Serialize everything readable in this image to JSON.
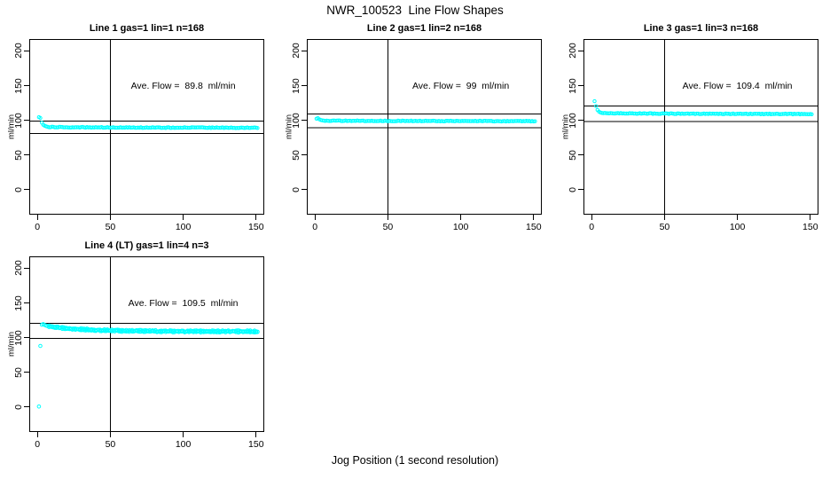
{
  "page": {
    "main_title": "NWR_100523  Line Flow Shapes",
    "x_axis_label": "Jog Position (1 second resolution)",
    "background_color": "#ffffff",
    "line_color": "#000000",
    "point_color": "#00ffff"
  },
  "chart_data": [
    {
      "type": "scatter",
      "title": "Line 1 gas=1 lin=1 n=168",
      "ylabel": "ml/min",
      "annotation": "Ave. Flow =  89.8  ml/min",
      "annotation_xy": [
        100,
        150
      ],
      "ave_flow_ml_min": 89.8,
      "n": 168,
      "xlim": [
        -5,
        155
      ],
      "ylim": [
        -35,
        216
      ],
      "x_ticks": [
        0,
        50,
        100,
        150
      ],
      "y_ticks": [
        0,
        50,
        100,
        150,
        200
      ],
      "vline_x": 50,
      "hlines": [
        98.8,
        80.8
      ],
      "marker": {
        "shape": "circle-open",
        "color": "#00ffff",
        "radius": 1.7
      },
      "outlier_points": [],
      "transient_points": [
        [
          1,
          104.5
        ],
        [
          2,
          103.3
        ],
        [
          3,
          96.5
        ],
        [
          4,
          93.5
        ],
        [
          5,
          92.0
        ],
        [
          6,
          91.1
        ],
        [
          7,
          90.5
        ]
      ],
      "band": {
        "x_from": 8,
        "x_to": 151,
        "level_start": 90.3,
        "level_end": 89.2,
        "tau": 45,
        "noise": 0.55,
        "layers": 1
      }
    },
    {
      "type": "scatter",
      "title": "Line 2 gas=1 lin=2 n=168",
      "ylabel": "ml/min",
      "annotation": "Ave. Flow =  99  ml/min",
      "annotation_xy": [
        100,
        150
      ],
      "ave_flow_ml_min": 99,
      "n": 168,
      "xlim": [
        -5,
        155
      ],
      "ylim": [
        -35,
        216
      ],
      "x_ticks": [
        0,
        50,
        100,
        150
      ],
      "y_ticks": [
        0,
        50,
        100,
        150,
        200
      ],
      "vline_x": 50,
      "hlines": [
        108.9,
        89.1
      ],
      "marker": {
        "shape": "circle-open",
        "color": "#00ffff",
        "radius": 1.7
      },
      "outlier_points": [],
      "transient_points": [
        [
          1,
          102.3
        ],
        [
          2,
          103.0
        ],
        [
          3,
          101.3
        ],
        [
          4,
          100.3
        ],
        [
          5,
          99.8
        ],
        [
          6,
          99.5
        ]
      ],
      "band": {
        "x_from": 7,
        "x_to": 151,
        "level_start": 99.4,
        "level_end": 98.7,
        "tau": 60,
        "noise": 0.5,
        "layers": 1
      }
    },
    {
      "type": "scatter",
      "title": "Line 3 gas=1 lin=3 n=168",
      "ylabel": "ml/min",
      "annotation": "Ave. Flow =  109.4  ml/min",
      "annotation_xy": [
        100,
        150
      ],
      "ave_flow_ml_min": 109.4,
      "n": 168,
      "xlim": [
        -5,
        155
      ],
      "ylim": [
        -35,
        216
      ],
      "x_ticks": [
        0,
        50,
        100,
        150
      ],
      "y_ticks": [
        0,
        50,
        100,
        150,
        200
      ],
      "vline_x": 50,
      "hlines": [
        120.3,
        98.5
      ],
      "marker": {
        "shape": "circle-open",
        "color": "#00ffff",
        "radius": 1.7
      },
      "outlier_points": [],
      "transient_points": [
        [
          2,
          127.5
        ],
        [
          3,
          120.5
        ],
        [
          4,
          115.0
        ],
        [
          5,
          112.5
        ],
        [
          6,
          111.2
        ],
        [
          7,
          110.6
        ]
      ],
      "band": {
        "x_from": 8,
        "x_to": 151,
        "level_start": 110.3,
        "level_end": 109.0,
        "tau": 50,
        "noise": 0.5,
        "layers": 1
      }
    },
    {
      "type": "scatter",
      "title": "Line 4 (LT) gas=1 lin=4 n=3",
      "ylabel": "ml/min",
      "annotation": "Ave. Flow =  109.5  ml/min",
      "annotation_xy": [
        100,
        150
      ],
      "ave_flow_ml_min": 109.5,
      "n": 3,
      "xlim": [
        -5,
        155
      ],
      "ylim": [
        -35,
        216
      ],
      "x_ticks": [
        0,
        50,
        100,
        150
      ],
      "y_ticks": [
        0,
        50,
        100,
        150,
        200
      ],
      "vline_x": 50,
      "hlines": [
        120.5,
        98.6
      ],
      "marker": {
        "shape": "circle-open",
        "color": "#00ffff",
        "radius": 1.8
      },
      "outlier_points": [
        [
          1,
          0.5
        ],
        [
          2,
          88.0
        ]
      ],
      "transient_points": [
        [
          3,
          118.5
        ],
        [
          4,
          119.5
        ],
        [
          5,
          118.2
        ],
        [
          6,
          117.3
        ],
        [
          7,
          116.6
        ]
      ],
      "band": {
        "x_from": 8,
        "x_to": 151,
        "level_start": 116.2,
        "level_end": 108.8,
        "tau": 26,
        "noise": 1.0,
        "layers": 2
      }
    }
  ]
}
